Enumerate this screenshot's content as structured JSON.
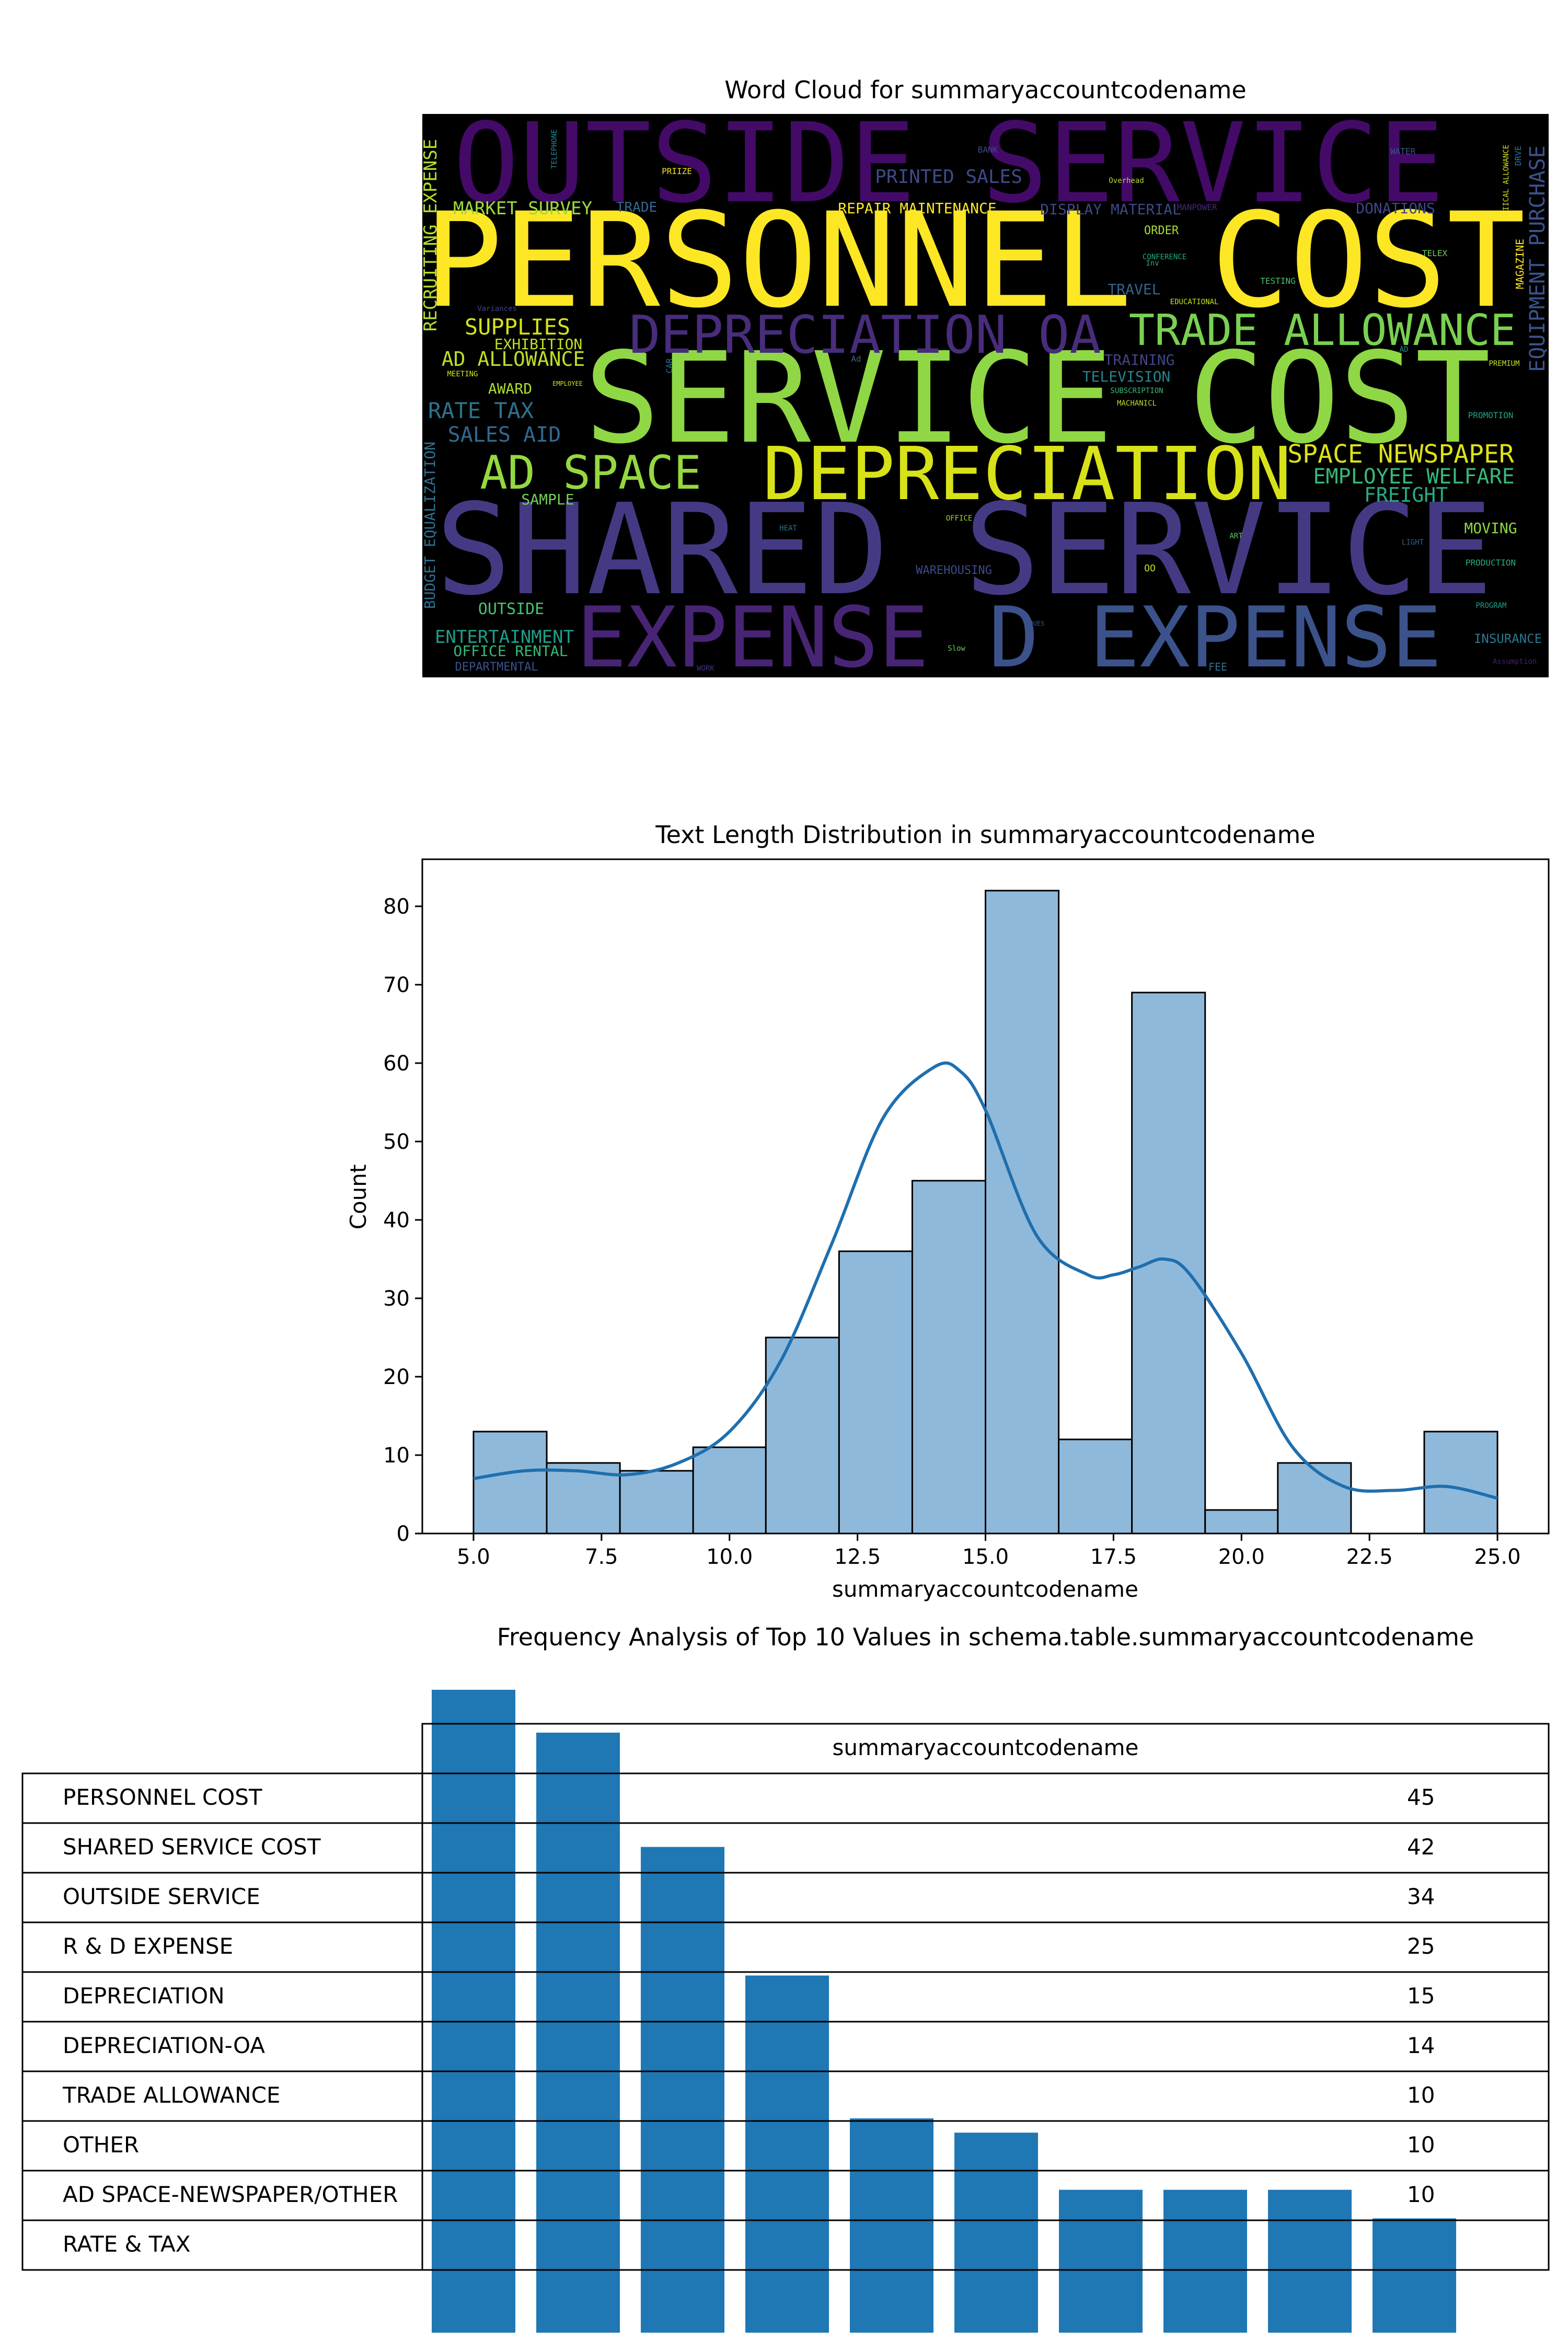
{
  "wordcloud": {
    "title": "Word Cloud for summaryaccountcodename",
    "background": "#000000",
    "words": [
      {
        "text": "OUTSIDE SERVICE",
        "color": "#440a68"
      },
      {
        "text": "PERSONNEL COST",
        "color": "#fde725"
      },
      {
        "text": "SERVICE COST",
        "color": "#8fd744"
      },
      {
        "text": "SHARED SERVICE",
        "color": "#443a83"
      },
      {
        "text": "DEPRECIATION",
        "color": "#d8e219"
      },
      {
        "text": "EXPENSE",
        "color": "#482475"
      },
      {
        "text": "D EXPENSE",
        "color": "#3b528b"
      },
      {
        "text": "DEPRECIATION OA",
        "color": "#472d7b"
      },
      {
        "text": "TRADE ALLOWANCE",
        "color": "#7ad151"
      },
      {
        "text": "AD SPACE",
        "color": "#95d840"
      },
      {
        "text": "SPACE NEWSPAPER",
        "color": "#dde318"
      },
      {
        "text": "EMPLOYEE WELFARE",
        "color": "#37b878"
      },
      {
        "text": "RATE TAX",
        "color": "#2c728e"
      },
      {
        "text": "SALES AID",
        "color": "#31688e"
      },
      {
        "text": "SUPPLIES",
        "color": "#d2e21b"
      },
      {
        "text": "AD ALLOWANCE",
        "color": "#bddf26"
      },
      {
        "text": "PRINTED SALES",
        "color": "#3e4989"
      },
      {
        "text": "MARKET SURVEY",
        "color": "#9fda3a"
      },
      {
        "text": "RECRUITING EXPENSE",
        "color": "#b5de2b"
      },
      {
        "text": "EQUIPMENT PURCHASE",
        "color": "#3b528b"
      },
      {
        "text": "BUDGET EQUALIZATION",
        "color": "#2d708e"
      },
      {
        "text": "FREIGHT",
        "color": "#25ab82"
      },
      {
        "text": "ENTERTAINMENT",
        "color": "#1f9e89"
      },
      {
        "text": "OFFICE RENTAL",
        "color": "#35b779"
      },
      {
        "text": "OUTSIDE",
        "color": "#4ac16d"
      },
      {
        "text": "INSURANCE",
        "color": "#2a788e"
      },
      {
        "text": "MOVING",
        "color": "#90d743"
      },
      {
        "text": "DONATIONS",
        "color": "#404688"
      },
      {
        "text": "TRAINING",
        "color": "#414487"
      },
      {
        "text": "TELEVISION",
        "color": "#26828e"
      },
      {
        "text": "REPAIR MAINTENANCE",
        "color": "#fde725"
      },
      {
        "text": "DISPLAY MATERIAL",
        "color": "#3f4788"
      },
      {
        "text": "TRAVEL",
        "color": "#33638d"
      },
      {
        "text": "EXHIBITION",
        "color": "#c2df23"
      },
      {
        "text": "AWARD",
        "color": "#addc30"
      },
      {
        "text": "SAMPLE",
        "color": "#73d056"
      },
      {
        "text": "DEPARTMENTAL",
        "color": "#3b528b"
      },
      {
        "text": "TRADE",
        "color": "#30698e"
      },
      {
        "text": "ORDER",
        "color": "#a8db34"
      },
      {
        "text": "MAGAZINE",
        "color": "#fde725"
      },
      {
        "text": "TESTING",
        "color": "#46c06f"
      },
      {
        "text": "TELEX",
        "color": "#6ece58"
      },
      {
        "text": "EDUCATIONAL",
        "color": "#cae11f"
      },
      {
        "text": "SUBSCRIPTION",
        "color": "#3aba76"
      },
      {
        "text": "MACHANICL",
        "color": "#b8de29"
      },
      {
        "text": "CONFERENCE",
        "color": "#22a884"
      },
      {
        "text": "MANPOWER",
        "color": "#472878"
      },
      {
        "text": "WAREHOUSING",
        "color": "#3e4a89"
      },
      {
        "text": "PROMOTION",
        "color": "#20a486"
      },
      {
        "text": "PRODUCTION",
        "color": "#25ac82"
      },
      {
        "text": "PROGRAM",
        "color": "#1fa088"
      },
      {
        "text": "PREMIUM",
        "color": "#c5e021"
      },
      {
        "text": "OFFICE",
        "color": "#9dd93b"
      },
      {
        "text": "HEAT",
        "color": "#2c738e"
      },
      {
        "text": "ART",
        "color": "#5cc863"
      },
      {
        "text": "LIGHT",
        "color": "#35608d"
      },
      {
        "text": "BANK",
        "color": "#3e4989"
      },
      {
        "text": "WATER",
        "color": "#38588c"
      },
      {
        "text": "PRIIZE",
        "color": "#f1e51d"
      },
      {
        "text": "TELEPHONE",
        "color": "#24868e"
      },
      {
        "text": "Overhead",
        "color": "#b0dd2f"
      },
      {
        "text": "Variances",
        "color": "#414487"
      },
      {
        "text": "MEETING",
        "color": "#d5e21a"
      },
      {
        "text": "EMPLOYEE",
        "color": "#dae319"
      },
      {
        "text": "CAR",
        "color": "#2d708e"
      },
      {
        "text": "Ad",
        "color": "#31688e"
      },
      {
        "text": "DUES",
        "color": "#3b518b"
      },
      {
        "text": "WORK",
        "color": "#472f7d"
      },
      {
        "text": "FEE",
        "color": "#2f6c8e"
      },
      {
        "text": "Slow",
        "color": "#6ccd5a"
      },
      {
        "text": "Inv",
        "color": "#26ad81"
      },
      {
        "text": "OO",
        "color": "#cae11f"
      },
      {
        "text": "AD",
        "color": "#21918c"
      },
      {
        "text": "DRVE",
        "color": "#2c728e"
      },
      {
        "text": "IICAL ALLOWANCE",
        "color": "#d2e21b"
      },
      {
        "text": "Assumption",
        "color": "#481f70"
      }
    ]
  },
  "histogram": {
    "title": "Text Length Distribution in summaryaccountcodename",
    "xlabel": "summaryaccountcodename",
    "ylabel": "Count",
    "bar_color": "#8fb9db",
    "kde_color": "#1f6fae"
  },
  "bar_table": {
    "title": "Frequency Analysis of Top 10 Values in schema.table.summaryaccountcodename",
    "column_header": "summaryaccountcodename",
    "bar_color": "#1f77b4"
  },
  "chart_data": [
    {
      "type": "histogram",
      "title": "Text Length Distribution in summaryaccountcodename",
      "xlabel": "summaryaccountcodename",
      "ylabel": "Count",
      "bin_edges": [
        5.0,
        6.43,
        7.86,
        9.29,
        10.71,
        12.14,
        13.57,
        15.0,
        16.43,
        17.86,
        19.29,
        20.71,
        22.14,
        23.57,
        25.0
      ],
      "counts": [
        13,
        9,
        8,
        11,
        25,
        36,
        45,
        82,
        12,
        69,
        3,
        9,
        0,
        13
      ],
      "kde": {
        "x": [
          5.0,
          6.0,
          7.0,
          8.0,
          9.0,
          10.0,
          11.0,
          12.0,
          13.0,
          14.0,
          14.5,
          15.0,
          16.0,
          17.0,
          17.5,
          18.0,
          18.5,
          19.0,
          20.0,
          21.0,
          22.0,
          23.0,
          24.0,
          25.0
        ],
        "y": [
          7,
          8,
          8,
          7.5,
          9,
          13,
          22,
          37,
          53,
          59.5,
          59,
          54,
          38,
          33,
          33,
          34,
          35,
          33,
          23,
          11,
          6,
          5.5,
          6,
          4.5
        ]
      },
      "xticks": [
        "5.0",
        "7.5",
        "10.0",
        "12.5",
        "15.0",
        "17.5",
        "20.0",
        "22.5",
        "25.0"
      ],
      "yticks": [
        "0",
        "10",
        "20",
        "30",
        "40",
        "50",
        "60",
        "70",
        "80"
      ],
      "xlim": [
        4.0,
        26.0
      ],
      "ylim": [
        0,
        86
      ]
    },
    {
      "type": "bar",
      "title": "Frequency Analysis of Top 10 Values in schema.table.summaryaccountcodename",
      "categories": [
        "PERSONNEL COST",
        "SHARED SERVICE COST",
        "OUTSIDE SERVICE",
        "R & D EXPENSE",
        "DEPRECIATION",
        "DEPRECIATION-OA",
        "TRADE ALLOWANCE",
        "OTHER",
        "AD SPACE-NEWSPAPER/OTHER",
        "RATE & TAX"
      ],
      "values": [
        45,
        42,
        34,
        25,
        15,
        14,
        10,
        10,
        10,
        8
      ],
      "table_values": [
        "45",
        "42",
        "34",
        "25",
        "15",
        "14",
        "10",
        "10",
        "10",
        ""
      ],
      "column_header": "summaryaccountcodename"
    }
  ]
}
